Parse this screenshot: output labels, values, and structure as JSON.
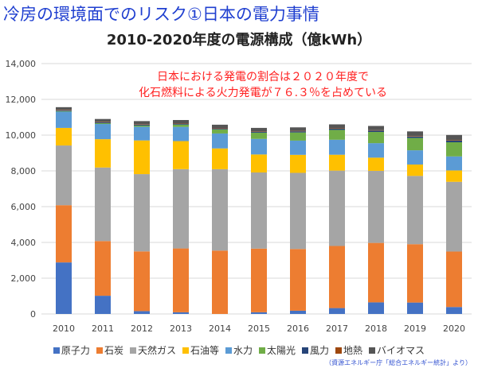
{
  "title": "冷房の環境面でのリスク①日本の電力事情",
  "note_lines": [
    "日本における発電の割合は２０２０年度で",
    "化石燃料による火力発電が７６.３％を占めている"
  ],
  "source": "（資源エネルギー庁「総合エネルギー統計」より）",
  "chart_data": {
    "type": "bar",
    "stacked": true,
    "title": "2010-2020年度の電源構成（億kWh）",
    "xlabel": "",
    "ylabel": "",
    "ylim": [
      0,
      14000
    ],
    "yticks": [
      "0",
      "2,000",
      "4,000",
      "6,000",
      "8,000",
      "10,000",
      "12,000",
      "14,000"
    ],
    "grid": true,
    "legend_position": "bottom",
    "categories": [
      "2010",
      "2011",
      "2012",
      "2013",
      "2014",
      "2015",
      "2016",
      "2017",
      "2018",
      "2019",
      "2020"
    ],
    "series": [
      {
        "name": "原子力",
        "color": "#4472C4",
        "values": [
          2882,
          1018,
          159,
          93,
          0,
          94,
          181,
          329,
          649,
          638,
          388
        ]
      },
      {
        "name": "石炭",
        "color": "#ED7D31",
        "values": [
          3199,
          3058,
          3340,
          3570,
          3543,
          3560,
          3451,
          3472,
          3324,
          3263,
          3102
        ]
      },
      {
        "name": "天然ガス",
        "color": "#A5A5A5",
        "values": [
          3339,
          4113,
          4320,
          4435,
          4552,
          4257,
          4258,
          4215,
          4030,
          3818,
          3899
        ]
      },
      {
        "name": "石油等",
        "color": "#FFC000",
        "values": [
          983,
          1583,
          1885,
          1567,
          1162,
          1007,
          1007,
          887,
          737,
          636,
          636
        ]
      },
      {
        "name": "水力",
        "color": "#5B9BD5",
        "values": [
          907,
          849,
          765,
          794,
          835,
          871,
          795,
          838,
          810,
          796,
          784
        ]
      },
      {
        "name": "太陽光",
        "color": "#70AD47",
        "values": [
          35,
          48,
          66,
          129,
          230,
          348,
          458,
          551,
          627,
          690,
          791
        ]
      },
      {
        "name": "風力",
        "color": "#264478",
        "values": [
          40,
          47,
          48,
          52,
          52,
          56,
          62,
          65,
          75,
          77,
          90
        ]
      },
      {
        "name": "地熱",
        "color": "#9E480E",
        "values": [
          26,
          27,
          26,
          26,
          26,
          26,
          25,
          25,
          25,
          28,
          30
        ]
      },
      {
        "name": "バイオマス",
        "color": "#555555",
        "values": [
          152,
          159,
          175,
          178,
          182,
          185,
          197,
          219,
          236,
          262,
          288
        ]
      }
    ]
  }
}
